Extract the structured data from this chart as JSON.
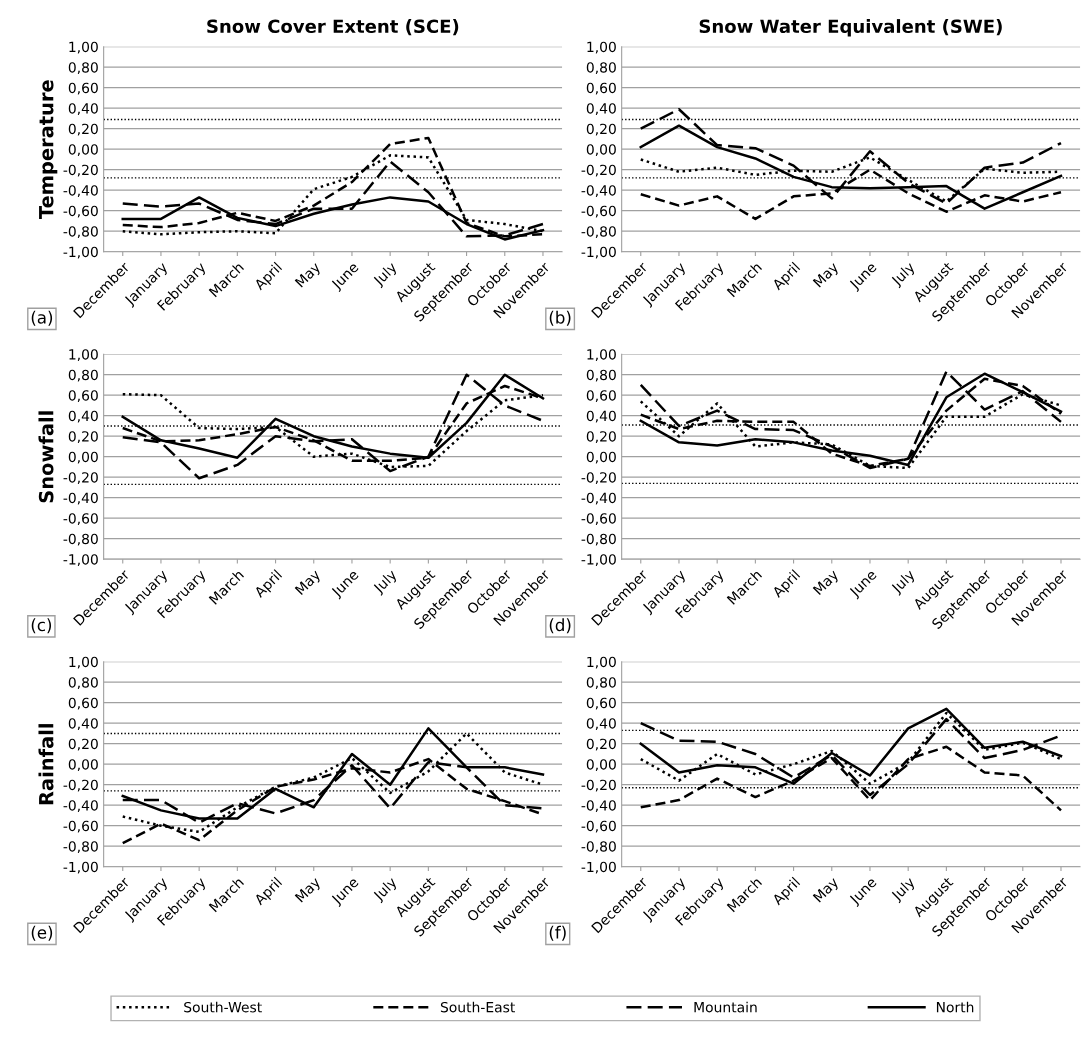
{
  "chart_data": [
    {
      "type": "line",
      "title": "Snow Cover Extent (SCE)",
      "ylabel": "Temperature",
      "annotations": [
        "(a)"
      ],
      "legend": "bottom",
      "grid": "y",
      "categories": [
        "December",
        "January",
        "February",
        "March",
        "April",
        "May",
        "June",
        "July",
        "August",
        "September",
        "October",
        "November"
      ],
      "ylim": [
        -1,
        1
      ],
      "yticks": [
        {
          "value": -1,
          "label": "-1,00"
        },
        {
          "value": -0.8,
          "label": "-0,80"
        },
        {
          "value": -0.6,
          "label": "-0,60"
        },
        {
          "value": -0.4,
          "label": "-0,40"
        },
        {
          "value": -0.2,
          "label": "-0,20"
        },
        {
          "value": 0,
          "label": "0,00"
        },
        {
          "value": 0.2,
          "label": "0,20"
        },
        {
          "value": 0.4,
          "label": "0,40"
        },
        {
          "value": 0.6,
          "label": "0,60"
        },
        {
          "value": 0.8,
          "label": "0,80"
        },
        {
          "value": 1,
          "label": "1,00"
        }
      ],
      "ref_lines": [
        {
          "axis": "y",
          "value": 0.29,
          "color": "#000000",
          "line_style": "dotted"
        },
        {
          "axis": "y",
          "value": -0.28,
          "color": "#000000",
          "line_style": "dotted"
        }
      ],
      "series": [
        {
          "name": "South-West",
          "color": "#000000",
          "line_style": "dotted",
          "values": [
            -0.8,
            -0.83,
            -0.81,
            -0.8,
            -0.82,
            -0.39,
            -0.27,
            -0.06,
            -0.08,
            -0.69,
            -0.73,
            -0.8
          ]
        },
        {
          "name": "South-East",
          "color": "#000000",
          "line_style": "dashed",
          "values": [
            -0.74,
            -0.76,
            -0.72,
            -0.62,
            -0.7,
            -0.55,
            -0.32,
            0.05,
            0.11,
            -0.72,
            -0.85,
            -0.83
          ]
        },
        {
          "name": "Mountain",
          "color": "#000000",
          "line_style": "longdash",
          "values": [
            -0.53,
            -0.56,
            -0.53,
            -0.69,
            -0.73,
            -0.58,
            -0.58,
            -0.12,
            -0.42,
            -0.85,
            -0.84,
            -0.73
          ]
        },
        {
          "name": "North",
          "color": "#000000",
          "line_style": "solid",
          "values": [
            -0.68,
            -0.68,
            -0.47,
            -0.67,
            -0.75,
            -0.63,
            -0.54,
            -0.47,
            -0.51,
            -0.73,
            -0.88,
            -0.79
          ]
        }
      ]
    },
    {
      "type": "line",
      "title": "Snow Water Equivalent (SWE)",
      "annotations": [
        "(b)"
      ],
      "grid": "y",
      "categories": [
        "December",
        "January",
        "February",
        "March",
        "April",
        "May",
        "June",
        "July",
        "August",
        "September",
        "October",
        "November"
      ],
      "ylim": [
        -1,
        1
      ],
      "yticks": [
        {
          "value": -1,
          "label": "-1,00"
        },
        {
          "value": -0.8,
          "label": "-0,80"
        },
        {
          "value": -0.6,
          "label": "-0,60"
        },
        {
          "value": -0.4,
          "label": "-0,40"
        },
        {
          "value": -0.2,
          "label": "-0,20"
        },
        {
          "value": 0,
          "label": "0,00"
        },
        {
          "value": 0.2,
          "label": "0,20"
        },
        {
          "value": 0.4,
          "label": "0,40"
        },
        {
          "value": 0.6,
          "label": "0,60"
        },
        {
          "value": 0.8,
          "label": "0,80"
        },
        {
          "value": 1,
          "label": "1,00"
        }
      ],
      "ref_lines": [
        {
          "axis": "y",
          "value": 0.29,
          "color": "#000000",
          "line_style": "dotted"
        },
        {
          "axis": "y",
          "value": -0.28,
          "color": "#000000",
          "line_style": "dotted"
        }
      ],
      "series": [
        {
          "color": "#000000",
          "line_style": "dotted",
          "values": [
            -0.1,
            -0.22,
            -0.18,
            -0.25,
            -0.21,
            -0.22,
            -0.08,
            -0.3,
            -0.51,
            -0.19,
            -0.23,
            -0.22
          ]
        },
        {
          "color": "#000000",
          "line_style": "dashed",
          "values": [
            -0.44,
            -0.55,
            -0.46,
            -0.68,
            -0.46,
            -0.43,
            -0.2,
            -0.43,
            -0.61,
            -0.45,
            -0.51,
            -0.42
          ]
        },
        {
          "color": "#000000",
          "line_style": "longdash",
          "values": [
            0.2,
            0.39,
            0.04,
            0.01,
            -0.16,
            -0.48,
            -0.02,
            -0.33,
            -0.53,
            -0.18,
            -0.13,
            0.06
          ]
        },
        {
          "color": "#000000",
          "line_style": "solid",
          "values": [
            0.02,
            0.23,
            0.02,
            -0.09,
            -0.27,
            -0.37,
            -0.38,
            -0.37,
            -0.36,
            -0.58,
            -0.42,
            -0.26
          ]
        }
      ]
    },
    {
      "type": "line",
      "ylabel": "Snowfall",
      "annotations": [
        "(c)"
      ],
      "grid": "y",
      "categories": [
        "December",
        "January",
        "February",
        "March",
        "April",
        "May",
        "June",
        "July",
        "August",
        "September",
        "October",
        "November"
      ],
      "ylim": [
        -1,
        1
      ],
      "yticks": [
        {
          "value": -1,
          "label": "-1,00"
        },
        {
          "value": -0.8,
          "label": "-0,80"
        },
        {
          "value": -0.6,
          "label": "-0,60"
        },
        {
          "value": -0.4,
          "label": "-0,40"
        },
        {
          "value": -0.2,
          "label": "-0,20"
        },
        {
          "value": 0,
          "label": "0,00"
        },
        {
          "value": 0.2,
          "label": "0,20"
        },
        {
          "value": 0.4,
          "label": "0,40"
        },
        {
          "value": 0.6,
          "label": "0,60"
        },
        {
          "value": 0.8,
          "label": "0,80"
        },
        {
          "value": 1,
          "label": "1,00"
        }
      ],
      "ref_lines": [
        {
          "axis": "y",
          "value": 0.3,
          "color": "#000000",
          "line_style": "dotted"
        },
        {
          "axis": "y",
          "value": -0.27,
          "color": "#000000",
          "line_style": "dotted"
        }
      ],
      "series": [
        {
          "color": "#000000",
          "line_style": "dotted",
          "values": [
            0.61,
            0.6,
            0.28,
            0.27,
            0.29,
            0.0,
            0.03,
            -0.1,
            -0.09,
            0.25,
            0.55,
            0.6
          ]
        },
        {
          "color": "#000000",
          "line_style": "dashed",
          "values": [
            0.28,
            0.15,
            0.16,
            0.22,
            0.29,
            0.16,
            -0.04,
            -0.04,
            -0.01,
            0.52,
            0.69,
            0.57
          ]
        },
        {
          "color": "#000000",
          "line_style": "longdash",
          "values": [
            0.19,
            0.14,
            -0.21,
            -0.08,
            0.2,
            0.15,
            0.17,
            -0.14,
            0.0,
            0.8,
            0.5,
            0.35
          ]
        },
        {
          "color": "#000000",
          "line_style": "solid",
          "values": [
            0.39,
            0.16,
            0.08,
            -0.01,
            0.37,
            0.2,
            0.1,
            0.03,
            -0.01,
            0.33,
            0.8,
            0.57
          ]
        }
      ]
    },
    {
      "type": "line",
      "annotations": [
        "(d)"
      ],
      "grid": "y",
      "categories": [
        "December",
        "January",
        "February",
        "March",
        "April",
        "May",
        "June",
        "July",
        "August",
        "September",
        "October",
        "November"
      ],
      "ylim": [
        -1,
        1
      ],
      "yticks": [
        {
          "value": -1,
          "label": "-1,00"
        },
        {
          "value": -0.8,
          "label": "-0,80"
        },
        {
          "value": -0.6,
          "label": "-0,60"
        },
        {
          "value": -0.4,
          "label": "-0,40"
        },
        {
          "value": -0.2,
          "label": "-0,20"
        },
        {
          "value": 0,
          "label": "0,00"
        },
        {
          "value": 0.2,
          "label": "0,20"
        },
        {
          "value": 0.4,
          "label": "0,40"
        },
        {
          "value": 0.6,
          "label": "0,60"
        },
        {
          "value": 0.8,
          "label": "0,80"
        },
        {
          "value": 1,
          "label": "1,00"
        }
      ],
      "ref_lines": [
        {
          "axis": "y",
          "value": 0.31,
          "color": "#000000",
          "line_style": "dotted"
        },
        {
          "axis": "y",
          "value": -0.26,
          "color": "#000000",
          "line_style": "dotted"
        }
      ],
      "series": [
        {
          "color": "#000000",
          "line_style": "dotted",
          "values": [
            0.54,
            0.2,
            0.52,
            0.1,
            0.14,
            0.12,
            -0.09,
            -0.11,
            0.39,
            0.39,
            0.61,
            0.5
          ]
        },
        {
          "color": "#000000",
          "line_style": "dashed",
          "values": [
            0.41,
            0.27,
            0.35,
            0.34,
            0.34,
            0.03,
            -0.09,
            -0.02,
            0.45,
            0.76,
            0.69,
            0.42
          ]
        },
        {
          "color": "#000000",
          "line_style": "longdash",
          "values": [
            0.7,
            0.3,
            0.45,
            0.27,
            0.26,
            0.1,
            -0.11,
            -0.02,
            0.83,
            0.46,
            0.64,
            0.34
          ]
        },
        {
          "color": "#000000",
          "line_style": "solid",
          "values": [
            0.35,
            0.14,
            0.11,
            0.17,
            0.14,
            0.06,
            0.01,
            -0.08,
            0.58,
            0.81,
            0.63,
            0.44
          ]
        }
      ]
    },
    {
      "type": "line",
      "ylabel": "Rainfall",
      "annotations": [
        "(e)"
      ],
      "grid": "y",
      "categories": [
        "December",
        "January",
        "February",
        "March",
        "April",
        "May",
        "June",
        "July",
        "August",
        "September",
        "October",
        "November"
      ],
      "ylim": [
        -1,
        1
      ],
      "yticks": [
        {
          "value": -1,
          "label": "-1,00"
        },
        {
          "value": -0.8,
          "label": "-0,80"
        },
        {
          "value": -0.6,
          "label": "-0,60"
        },
        {
          "value": -0.4,
          "label": "-0,40"
        },
        {
          "value": -0.2,
          "label": "-0,20"
        },
        {
          "value": 0,
          "label": "0,00"
        },
        {
          "value": 0.2,
          "label": "0,20"
        },
        {
          "value": 0.4,
          "label": "0,40"
        },
        {
          "value": 0.6,
          "label": "0,60"
        },
        {
          "value": 0.8,
          "label": "0,80"
        },
        {
          "value": 1,
          "label": "1,00"
        }
      ],
      "ref_lines": [
        {
          "axis": "y",
          "value": 0.3,
          "color": "#000000",
          "line_style": "dotted"
        },
        {
          "axis": "y",
          "value": -0.26,
          "color": "#000000",
          "line_style": "dotted"
        }
      ],
      "series": [
        {
          "color": "#000000",
          "line_style": "dotted",
          "values": [
            -0.51,
            -0.6,
            -0.66,
            -0.42,
            -0.22,
            -0.13,
            0.06,
            -0.28,
            -0.07,
            0.3,
            -0.08,
            -0.2
          ]
        },
        {
          "color": "#000000",
          "line_style": "dashed",
          "values": [
            -0.77,
            -0.58,
            -0.74,
            -0.45,
            -0.22,
            -0.15,
            -0.04,
            -0.08,
            0.05,
            -0.24,
            -0.36,
            -0.49
          ]
        },
        {
          "color": "#000000",
          "line_style": "longdash",
          "values": [
            -0.35,
            -0.35,
            -0.57,
            -0.38,
            -0.48,
            -0.35,
            -0.01,
            -0.43,
            0.02,
            -0.03,
            -0.4,
            -0.43
          ]
        },
        {
          "color": "#000000",
          "line_style": "solid",
          "values": [
            -0.31,
            -0.45,
            -0.53,
            -0.53,
            -0.24,
            -0.42,
            0.1,
            -0.2,
            0.35,
            -0.03,
            -0.03,
            -0.1
          ]
        }
      ]
    },
    {
      "type": "line",
      "annotations": [
        "(f)"
      ],
      "grid": "y",
      "categories": [
        "December",
        "January",
        "February",
        "March",
        "April",
        "May",
        "June",
        "July",
        "August",
        "September",
        "October",
        "November"
      ],
      "ylim": [
        -1,
        1
      ],
      "yticks": [
        {
          "value": -1,
          "label": "-1,00"
        },
        {
          "value": -0.8,
          "label": "-0,80"
        },
        {
          "value": -0.6,
          "label": "-0,60"
        },
        {
          "value": -0.4,
          "label": "-0,40"
        },
        {
          "value": -0.2,
          "label": "-0,20"
        },
        {
          "value": 0,
          "label": "0,00"
        },
        {
          "value": 0.2,
          "label": "0,20"
        },
        {
          "value": 0.4,
          "label": "0,40"
        },
        {
          "value": 0.6,
          "label": "0,60"
        },
        {
          "value": 0.8,
          "label": "0,80"
        },
        {
          "value": 1,
          "label": "1,00"
        }
      ],
      "ref_lines": [
        {
          "axis": "y",
          "value": 0.33,
          "color": "#000000",
          "line_style": "dotted"
        },
        {
          "axis": "y",
          "value": -0.23,
          "color": "#000000",
          "line_style": "dotted"
        }
      ],
      "series": [
        {
          "color": "#000000",
          "line_style": "dotted",
          "values": [
            0.05,
            -0.16,
            0.1,
            -0.1,
            0.0,
            0.13,
            -0.19,
            0.02,
            0.5,
            0.14,
            0.21,
            0.05
          ]
        },
        {
          "color": "#000000",
          "line_style": "dashed",
          "values": [
            -0.42,
            -0.35,
            -0.14,
            -0.32,
            -0.16,
            0.06,
            -0.35,
            0.05,
            0.17,
            -0.08,
            -0.11,
            -0.45
          ]
        },
        {
          "color": "#000000",
          "line_style": "longdash",
          "values": [
            0.4,
            0.23,
            0.22,
            0.1,
            -0.13,
            0.09,
            -0.3,
            0.0,
            0.44,
            0.06,
            0.14,
            0.28
          ]
        },
        {
          "color": "#000000",
          "line_style": "solid",
          "values": [
            0.2,
            -0.08,
            -0.01,
            -0.03,
            -0.19,
            0.11,
            -0.11,
            0.35,
            0.54,
            0.16,
            0.22,
            0.08
          ]
        }
      ]
    }
  ]
}
